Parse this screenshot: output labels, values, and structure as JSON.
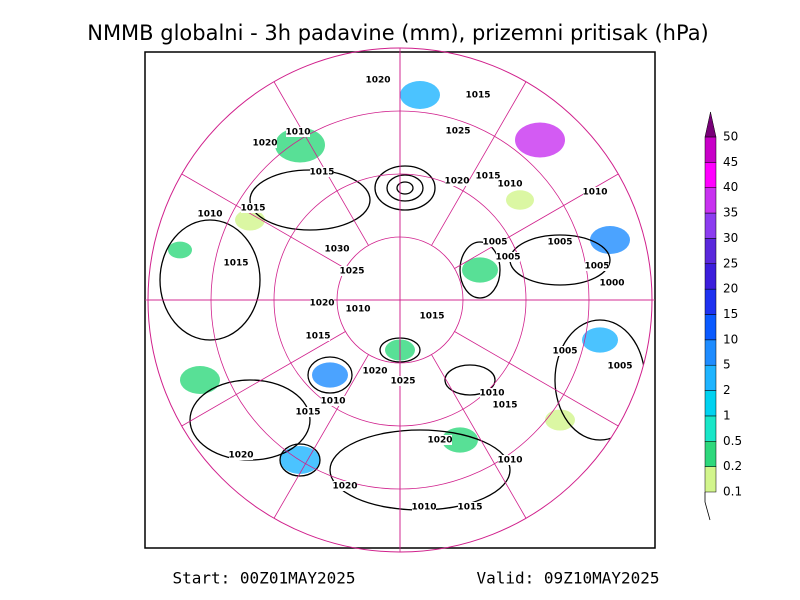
{
  "header": {
    "title": "NMMB globalni - 3h padavine (mm), prizemni pritisak (hPa)"
  },
  "footer": {
    "start": "Start: 00Z01MAY2025",
    "valid": "Valid: 09Z10MAY2025"
  },
  "colorbar": {
    "levels": [
      0.1,
      0.2,
      0.5,
      1,
      2,
      5,
      10,
      15,
      20,
      25,
      30,
      35,
      40,
      45,
      50
    ],
    "colors": [
      "#d2f58c",
      "#2ed87c",
      "#19e6c8",
      "#00d2f0",
      "#1eb4ff",
      "#1e8cff",
      "#0a5aff",
      "#1e32f0",
      "#3c1edc",
      "#5a28dc",
      "#8c3cf0",
      "#c832f0",
      "#ff00ff",
      "#c800c8",
      "#780078"
    ]
  },
  "isobar_labels": [
    "1020",
    "1015",
    "1010",
    "1020",
    "1025",
    "1015",
    "1020",
    "1015",
    "1010",
    "1010",
    "1015",
    "1005",
    "1010",
    "1005",
    "1030",
    "1005",
    "1015",
    "1025",
    "1005",
    "1000",
    "1020",
    "1010",
    "1015",
    "1015",
    "1020",
    "1025",
    "1005",
    "1005",
    "1010",
    "1015",
    "1020",
    "1010",
    "1020",
    "1010",
    "1015",
    "1020",
    "1010",
    "1015"
  ]
}
